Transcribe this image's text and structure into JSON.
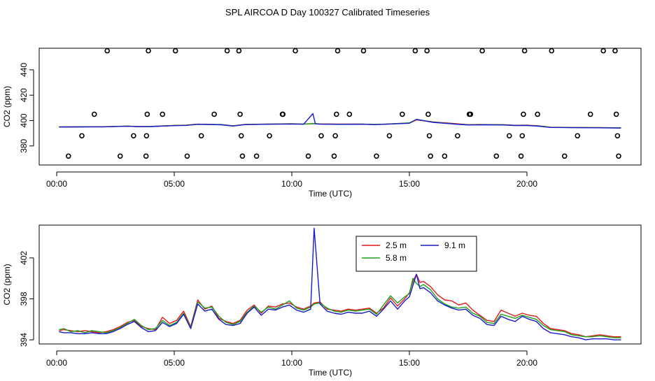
{
  "page_title": "SPL AIRCOA D  Day 100327  Calibrated Timeseries",
  "chart_data": [
    {
      "type": "scatter+line",
      "title": "SPL AIRCOA D  Day 100327  Calibrated Timeseries",
      "xlabel": "Time (UTC)",
      "ylabel": "CO2 (ppm)",
      "xlim": [
        0,
        24
      ],
      "ylim": [
        365,
        457
      ],
      "xticks": [
        0,
        5,
        10,
        15,
        20
      ],
      "xtick_labels": [
        "00:00",
        "05:00",
        "10:00",
        "15:00",
        "20:00"
      ],
      "yticks": [
        380,
        400,
        420,
        440
      ],
      "ytick_labels": [
        "380",
        "400",
        "420",
        "440"
      ],
      "grid": false,
      "legend": "none",
      "points": {
        "marker": "open-circle",
        "color": "#000000",
        "x": [
          0.5,
          1.07,
          1.6,
          2.15,
          2.7,
          3.27,
          3.8,
          3.82,
          3.85,
          3.9,
          4.5,
          5.05,
          5.55,
          6.15,
          6.7,
          7.25,
          7.75,
          7.8,
          7.85,
          7.9,
          8.5,
          9.05,
          9.6,
          9.62,
          10.15,
          10.7,
          11.25,
          11.8,
          11.85,
          11.9,
          11.95,
          12.45,
          13.05,
          13.6,
          14.15,
          14.7,
          15.25,
          15.75,
          15.8,
          15.85,
          15.9,
          16.5,
          17.05,
          17.55,
          17.6,
          18.1,
          18.7,
          19.25,
          19.75,
          19.8,
          19.85,
          19.9,
          20.45,
          21.05,
          21.6,
          22.15,
          22.7,
          23.25,
          23.75,
          23.8,
          23.85,
          23.9
        ],
        "y": [
          372,
          388,
          405,
          455,
          372,
          388,
          372,
          388,
          405,
          455,
          405,
          455,
          372,
          388,
          405,
          455,
          455,
          405,
          388,
          372,
          372,
          388,
          405,
          405,
          455,
          372,
          388,
          372,
          388,
          405,
          455,
          405,
          455,
          372,
          388,
          405,
          455,
          455,
          405,
          388,
          372,
          372,
          388,
          405,
          405,
          455,
          372,
          388,
          372,
          388,
          405,
          455,
          405,
          455,
          372,
          388,
          405,
          455,
          455,
          405,
          388,
          372
        ]
      },
      "series": [
        {
          "name": "2.5 m",
          "color": "#e41a1c",
          "x": [
            0.1,
            1,
            2,
            3,
            3.5,
            4,
            5,
            5.5,
            6,
            7,
            7.5,
            8,
            9,
            10,
            10.5,
            10.9,
            11,
            11.2,
            12,
            13,
            13.5,
            14,
            15,
            15.3,
            16,
            17,
            17.5,
            18,
            19,
            19.5,
            20,
            20.5,
            21,
            22,
            23,
            24
          ],
          "y": [
            395.0,
            395.1,
            395.2,
            395.6,
            395.3,
            395.4,
            396.2,
            396.4,
            397.2,
            396.8,
            395.9,
            397.0,
            397.3,
            397.5,
            397.3,
            397.6,
            397.5,
            397.4,
            397.3,
            397.3,
            396.9,
            397.3,
            398.0,
            400.5,
            399.0,
            397.5,
            396.8,
            396.9,
            396.8,
            396.3,
            396.4,
            395.9,
            394.8,
            394.6,
            394.5,
            394.3
          ]
        },
        {
          "name": "5.8 m",
          "color": "#1aa01a",
          "x": [
            0.1,
            1,
            2,
            3,
            3.5,
            4,
            5,
            5.5,
            6,
            7,
            7.5,
            8,
            9,
            10,
            10.5,
            10.9,
            11,
            11.2,
            12,
            13,
            13.5,
            14,
            15,
            15.3,
            16,
            17,
            17.5,
            18,
            19,
            19.5,
            20,
            20.5,
            21,
            22,
            23,
            24
          ],
          "y": [
            395.1,
            395.0,
            395.1,
            395.7,
            395.2,
            395.3,
            396.1,
            396.3,
            397.0,
            396.9,
            395.8,
            396.9,
            397.2,
            397.4,
            397.2,
            397.5,
            397.6,
            397.3,
            397.1,
            397.2,
            397.0,
            397.2,
            398.2,
            400.8,
            398.8,
            397.2,
            396.6,
            396.8,
            396.7,
            396.2,
            396.2,
            395.8,
            394.7,
            394.5,
            394.4,
            394.2
          ]
        },
        {
          "name": "9.1 m",
          "color": "#1a1acd",
          "x": [
            0.1,
            1,
            2,
            3,
            3.5,
            4,
            5,
            5.5,
            6,
            7,
            7.5,
            8,
            9,
            10,
            10.5,
            10.9,
            11,
            11.2,
            12,
            13,
            13.5,
            14,
            15,
            15.3,
            16,
            17,
            17.5,
            18,
            19,
            19.5,
            20,
            20.5,
            21,
            22,
            23,
            24
          ],
          "y": [
            394.9,
            395.0,
            395.1,
            395.5,
            395.2,
            395.3,
            396.0,
            396.2,
            397.1,
            396.7,
            395.7,
            396.8,
            397.1,
            397.3,
            397.1,
            405.5,
            397.4,
            397.2,
            397.0,
            397.1,
            396.8,
            397.1,
            397.9,
            401.0,
            398.6,
            397.1,
            396.5,
            396.7,
            396.5,
            396.1,
            396.1,
            395.6,
            394.6,
            394.4,
            394.3,
            394.1
          ]
        }
      ]
    },
    {
      "type": "line",
      "xlabel": "Time (UTC)",
      "ylabel": "CO2 (ppm)",
      "xlim": [
        0,
        24
      ],
      "ylim": [
        393.6,
        405.2
      ],
      "xticks": [
        0,
        5,
        10,
        15,
        20
      ],
      "xtick_labels": [
        "00:00",
        "05:00",
        "10:00",
        "15:00",
        "20:00"
      ],
      "yticks": [
        394,
        398,
        402
      ],
      "ytick_labels": [
        "394",
        "398",
        "402"
      ],
      "grid": false,
      "legend": "top-center",
      "series": [
        {
          "name": "2.5 m",
          "color": "#e41a1c",
          "x": [
            0.1,
            0.3,
            0.6,
            0.9,
            1.2,
            1.5,
            1.8,
            2.1,
            2.4,
            2.7,
            3.0,
            3.3,
            3.6,
            3.9,
            4.2,
            4.5,
            4.8,
            5.1,
            5.4,
            5.7,
            6.0,
            6.3,
            6.6,
            6.9,
            7.2,
            7.5,
            7.8,
            8.1,
            8.4,
            8.7,
            9.0,
            9.3,
            9.6,
            9.9,
            10.2,
            10.5,
            10.8,
            10.95,
            11.2,
            11.5,
            11.8,
            12.1,
            12.4,
            12.7,
            13.0,
            13.3,
            13.6,
            13.9,
            14.2,
            14.5,
            14.8,
            15.0,
            15.15,
            15.3,
            15.45,
            15.6,
            15.9,
            16.2,
            16.5,
            16.8,
            17.1,
            17.4,
            17.7,
            18.0,
            18.3,
            18.6,
            18.9,
            19.2,
            19.5,
            19.8,
            20.1,
            20.4,
            20.7,
            21.0,
            21.3,
            21.6,
            21.9,
            22.2,
            22.5,
            22.8,
            23.1,
            23.4,
            23.7,
            24.0
          ],
          "y": [
            394.9,
            395.0,
            394.9,
            394.8,
            394.9,
            394.8,
            394.7,
            394.8,
            395.0,
            395.3,
            395.7,
            395.9,
            395.3,
            395.1,
            395.0,
            396.2,
            395.6,
            395.9,
            396.8,
            395.3,
            397.9,
            397.0,
            397.3,
            396.1,
            395.8,
            395.6,
            395.9,
            396.9,
            397.4,
            396.6,
            397.3,
            397.2,
            397.5,
            397.6,
            397.2,
            397.0,
            397.3,
            397.6,
            397.7,
            397.0,
            396.9,
            396.8,
            397.0,
            396.9,
            397.0,
            397.1,
            396.6,
            397.1,
            398.1,
            397.3,
            398.0,
            398.6,
            399.7,
            400.4,
            399.6,
            399.7,
            399.2,
            398.4,
            397.9,
            397.8,
            397.4,
            397.6,
            396.9,
            396.4,
            395.9,
            395.8,
            396.9,
            396.6,
            396.3,
            396.6,
            396.4,
            396.3,
            395.6,
            395.1,
            395.0,
            394.9,
            394.6,
            394.5,
            394.3,
            394.4,
            394.5,
            394.4,
            394.3,
            394.3
          ]
        },
        {
          "name": "5.8 m",
          "color": "#1aa01a",
          "x": [
            0.1,
            0.3,
            0.6,
            0.9,
            1.2,
            1.5,
            1.8,
            2.1,
            2.4,
            2.7,
            3.0,
            3.3,
            3.6,
            3.9,
            4.2,
            4.5,
            4.8,
            5.1,
            5.4,
            5.7,
            6.0,
            6.3,
            6.6,
            6.9,
            7.2,
            7.5,
            7.8,
            8.1,
            8.4,
            8.7,
            9.0,
            9.3,
            9.6,
            9.9,
            10.2,
            10.5,
            10.8,
            10.95,
            11.2,
            11.5,
            11.8,
            12.1,
            12.4,
            12.7,
            13.0,
            13.3,
            13.6,
            13.9,
            14.2,
            14.5,
            14.8,
            15.0,
            15.15,
            15.3,
            15.45,
            15.6,
            15.9,
            16.2,
            16.5,
            16.8,
            17.1,
            17.4,
            17.7,
            18.0,
            18.3,
            18.6,
            18.9,
            19.2,
            19.5,
            19.8,
            20.1,
            20.4,
            20.7,
            21.0,
            21.3,
            21.6,
            21.9,
            22.2,
            22.5,
            22.8,
            23.1,
            23.4,
            23.7,
            24.0
          ],
          "y": [
            395.0,
            395.1,
            394.8,
            394.9,
            394.7,
            394.9,
            394.8,
            394.7,
            394.9,
            395.2,
            395.6,
            396.0,
            395.4,
            395.0,
            395.1,
            395.9,
            395.4,
            395.7,
            396.6,
            395.2,
            397.7,
            397.1,
            397.2,
            396.3,
            395.7,
            395.5,
            395.8,
            396.7,
            397.3,
            396.7,
            397.2,
            397.0,
            397.4,
            397.8,
            397.1,
            396.9,
            397.2,
            397.5,
            397.6,
            397.1,
            396.8,
            396.7,
            396.9,
            396.8,
            396.9,
            397.0,
            396.5,
            397.4,
            398.3,
            397.6,
            398.2,
            398.5,
            400.0,
            399.5,
            399.2,
            399.4,
            398.9,
            398.0,
            397.5,
            397.2,
            397.1,
            397.2,
            396.6,
            396.3,
            395.7,
            395.6,
            396.5,
            396.3,
            396.1,
            396.4,
            396.2,
            396.0,
            395.4,
            395.0,
            394.9,
            394.8,
            394.5,
            394.4,
            394.3,
            394.3,
            394.4,
            394.3,
            394.2,
            394.2
          ]
        },
        {
          "name": "9.1 m",
          "color": "#1a1acd",
          "x": [
            0.1,
            0.3,
            0.6,
            0.9,
            1.2,
            1.5,
            1.8,
            2.1,
            2.4,
            2.7,
            3.0,
            3.3,
            3.6,
            3.9,
            4.2,
            4.5,
            4.8,
            5.1,
            5.4,
            5.7,
            6.0,
            6.3,
            6.6,
            6.9,
            7.2,
            7.5,
            7.8,
            8.1,
            8.4,
            8.7,
            9.0,
            9.3,
            9.6,
            9.9,
            10.2,
            10.5,
            10.8,
            10.95,
            11.2,
            11.5,
            11.8,
            12.1,
            12.4,
            12.7,
            13.0,
            13.3,
            13.6,
            13.9,
            14.2,
            14.5,
            14.8,
            15.0,
            15.15,
            15.3,
            15.45,
            15.6,
            15.9,
            16.2,
            16.5,
            16.8,
            17.1,
            17.4,
            17.7,
            18.0,
            18.3,
            18.6,
            18.9,
            19.2,
            19.5,
            19.8,
            20.1,
            20.4,
            20.7,
            21.0,
            21.3,
            21.6,
            21.9,
            22.2,
            22.5,
            22.8,
            23.1,
            23.4,
            23.7,
            24.0
          ],
          "y": [
            394.8,
            394.7,
            394.7,
            394.6,
            394.6,
            394.7,
            394.6,
            394.6,
            394.8,
            395.1,
            395.5,
            395.8,
            395.2,
            394.8,
            394.9,
            395.7,
            395.3,
            395.6,
            396.5,
            395.1,
            397.5,
            396.8,
            397.0,
            396.0,
            395.5,
            395.4,
            395.6,
            396.6,
            397.2,
            396.4,
            397.0,
            396.9,
            397.2,
            397.4,
            396.9,
            396.7,
            397.0,
            404.9,
            397.5,
            396.8,
            396.6,
            396.5,
            396.7,
            396.6,
            396.6,
            396.8,
            396.3,
            397.0,
            397.8,
            397.0,
            397.8,
            398.2,
            399.3,
            400.4,
            399.0,
            399.1,
            398.6,
            397.8,
            397.4,
            397.1,
            396.9,
            397.0,
            396.4,
            396.1,
            395.5,
            395.4,
            396.3,
            396.0,
            395.8,
            396.3,
            396.0,
            395.8,
            395.1,
            394.7,
            394.6,
            394.5,
            394.3,
            394.2,
            394.0,
            394.1,
            394.1,
            394.1,
            394.0,
            394.0
          ]
        }
      ]
    }
  ]
}
